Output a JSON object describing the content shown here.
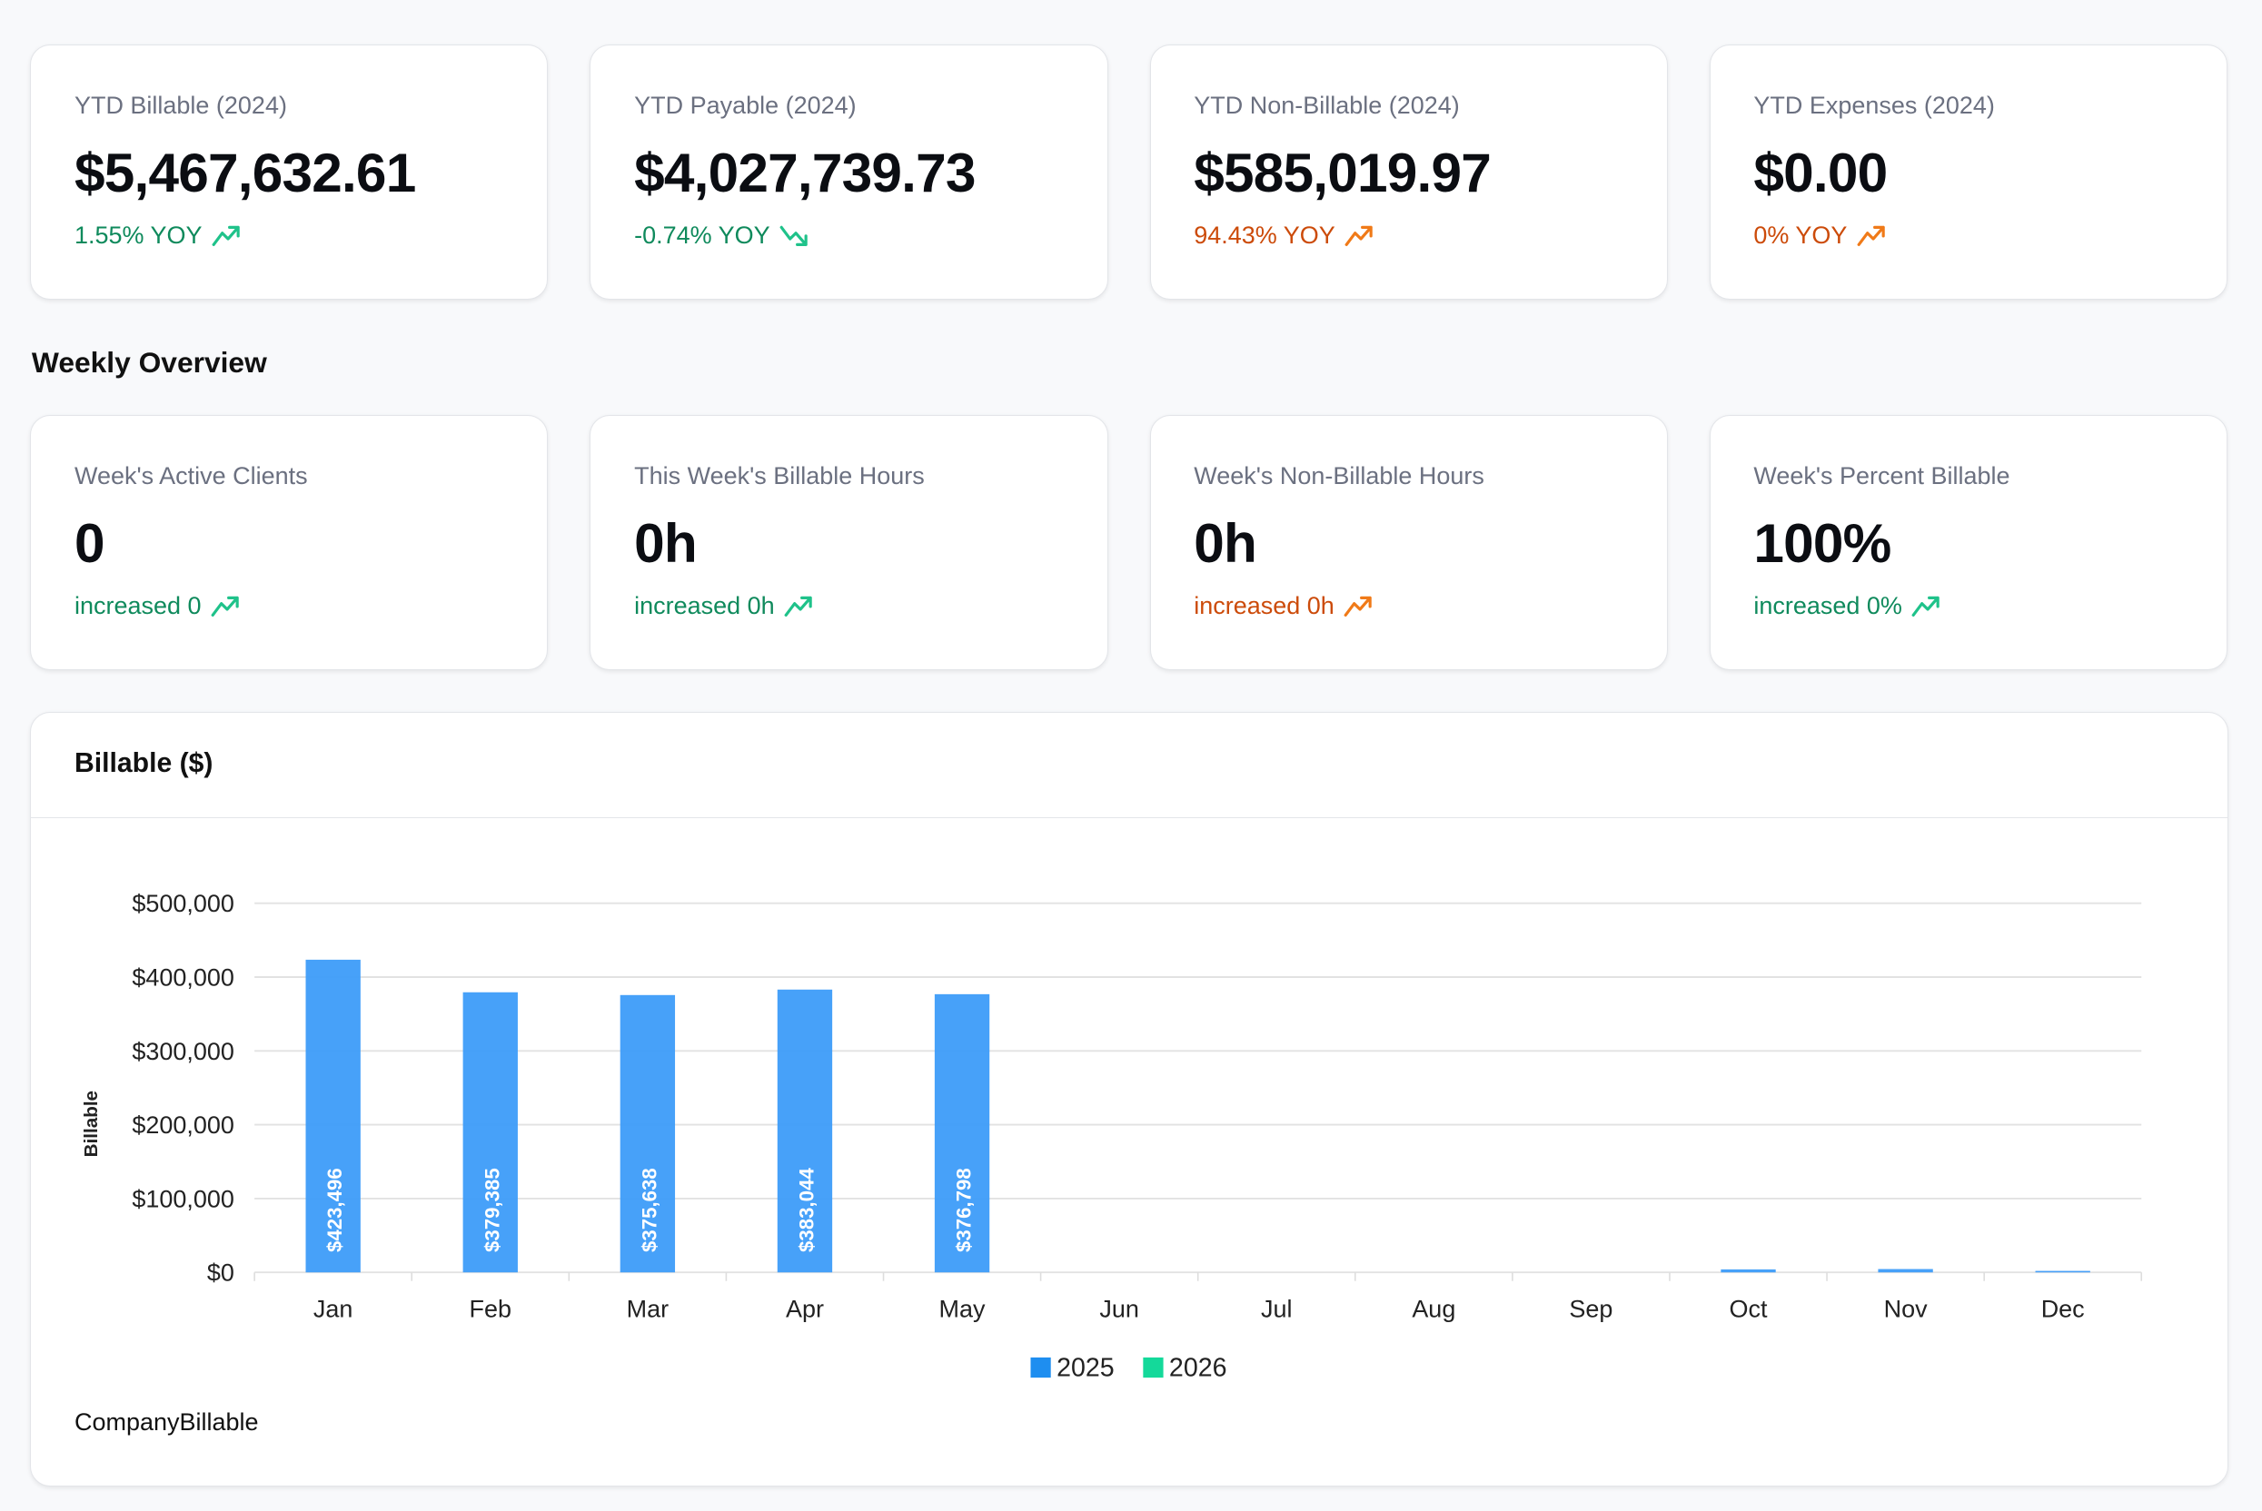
{
  "ytd": [
    {
      "label": "YTD Billable (2024)",
      "value": "$5,467,632.61",
      "change": "1.55% YOY",
      "trend": "up",
      "color": "green"
    },
    {
      "label": "YTD Payable (2024)",
      "value": "$4,027,739.73",
      "change": "-0.74% YOY",
      "trend": "down",
      "color": "green"
    },
    {
      "label": "YTD Non-Billable (2024)",
      "value": "$585,019.97",
      "change": "94.43% YOY",
      "trend": "up",
      "color": "orange"
    },
    {
      "label": "YTD Expenses (2024)",
      "value": "$0.00",
      "change": "0% YOY",
      "trend": "up",
      "color": "orange"
    }
  ],
  "weekly": {
    "title": "Weekly Overview",
    "cards": [
      {
        "label": "Week's Active Clients",
        "value": "0",
        "change": "increased 0",
        "trend": "up",
        "color": "green"
      },
      {
        "label": "This Week's Billable Hours",
        "value": "0h",
        "change": "increased 0h",
        "trend": "up",
        "color": "green"
      },
      {
        "label": "Week's Non-Billable Hours",
        "value": "0h",
        "change": "increased 0h",
        "trend": "up",
        "color": "orange"
      },
      {
        "label": "Week's Percent Billable",
        "value": "100%",
        "change": "increased 0%",
        "trend": "up",
        "color": "green"
      }
    ]
  },
  "chart_card": {
    "title": "Billable ($)",
    "footer": "CompanyBillable"
  },
  "colors": {
    "green": "#0f8a5c",
    "orange": "#cc4b0a",
    "series_2025": "#3d9cf9",
    "series_2026": "#14d99a"
  },
  "chart_data": {
    "type": "bar",
    "title": "",
    "xlabel": "",
    "ylabel": "Billable",
    "ylim": [
      0,
      500000
    ],
    "yticks": [
      0,
      100000,
      200000,
      300000,
      400000,
      500000
    ],
    "ytick_labels": [
      "$0",
      "$100,000",
      "$200,000",
      "$300,000",
      "$400,000",
      "$500,000"
    ],
    "grid": true,
    "legend": "bottom-center",
    "categories": [
      "Jan",
      "Feb",
      "Mar",
      "Apr",
      "May",
      "Jun",
      "Jul",
      "Aug",
      "Sep",
      "Oct",
      "Nov",
      "Dec"
    ],
    "series": [
      {
        "name": "2025",
        "values": [
          423496,
          379385,
          375638,
          383044,
          376798,
          0,
          0,
          0,
          0,
          4000,
          4500,
          2000
        ],
        "labels": [
          "$423,496",
          "$379,385",
          "$375,638",
          "$383,044",
          "$376,798",
          "",
          "",
          "",
          "",
          "",
          "",
          ""
        ]
      },
      {
        "name": "2026",
        "values": [
          0,
          0,
          0,
          0,
          0,
          0,
          0,
          0,
          0,
          0,
          0,
          0
        ]
      }
    ]
  }
}
